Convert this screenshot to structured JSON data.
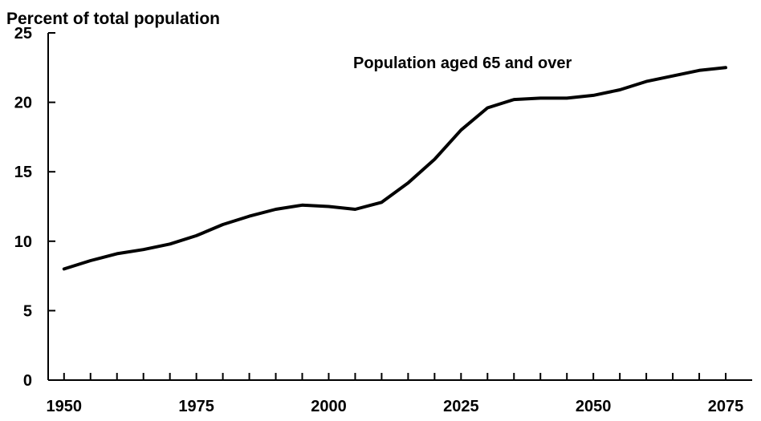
{
  "chart_data": {
    "type": "line",
    "ylabel": "Percent of total population",
    "xlim": [
      1947,
      2080
    ],
    "ylim": [
      0,
      25
    ],
    "yticks": [
      0,
      5,
      10,
      15,
      20,
      25
    ],
    "xticks_labeled": [
      1950,
      1975,
      2000,
      2025,
      2050,
      2075
    ],
    "xticks_minor_step": 5,
    "annotation": "Population aged 65 and over",
    "series": [
      {
        "name": "Population aged 65 and over",
        "x": [
          1950,
          1955,
          1960,
          1965,
          1970,
          1975,
          1980,
          1985,
          1990,
          1995,
          2000,
          2005,
          2010,
          2015,
          2020,
          2025,
          2030,
          2035,
          2040,
          2045,
          2050,
          2055,
          2060,
          2065,
          2070,
          2075
        ],
        "y": [
          8.0,
          8.6,
          9.1,
          9.4,
          9.8,
          10.4,
          11.2,
          11.8,
          12.3,
          12.6,
          12.5,
          12.3,
          12.8,
          14.2,
          15.9,
          18.0,
          19.6,
          20.2,
          20.3,
          20.3,
          20.5,
          20.9,
          21.5,
          21.9,
          22.3,
          22.5
        ]
      }
    ],
    "grid": false,
    "legend": "none"
  }
}
